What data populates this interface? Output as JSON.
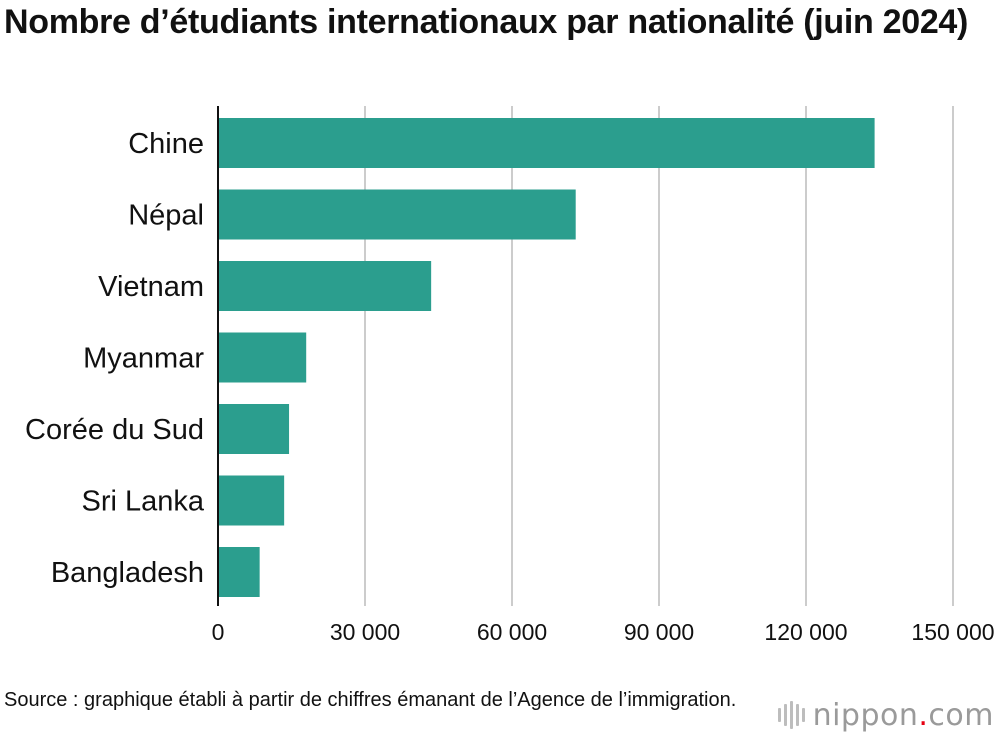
{
  "title": "Nombre d’étudiants internationaux par nationalité (juin 2024)",
  "source": "Source : graphique établi à partir de chiffres émanant de l’Agence de l’immigration.",
  "logo": {
    "name": "nippon",
    "dot": ".",
    "suffix": "com"
  },
  "colors": {
    "bar": "#2b9e8e",
    "grid": "#cccccc",
    "axis": "#111111"
  },
  "chart_data": {
    "type": "bar",
    "orientation": "horizontal",
    "categories": [
      "Chine",
      "Népal",
      "Vietnam",
      "Myanmar",
      "Corée du Sud",
      "Sri Lanka",
      "Bangladesh"
    ],
    "values": [
      134000,
      73000,
      43500,
      18000,
      14500,
      13500,
      8500
    ],
    "xlim": [
      0,
      150000
    ],
    "xticks": [
      0,
      30000,
      60000,
      90000,
      120000,
      150000
    ],
    "xtick_labels": [
      "0",
      "30 000",
      "60 000",
      "90 000",
      "120 000",
      "150 000"
    ],
    "grid": true,
    "legend": "none"
  }
}
